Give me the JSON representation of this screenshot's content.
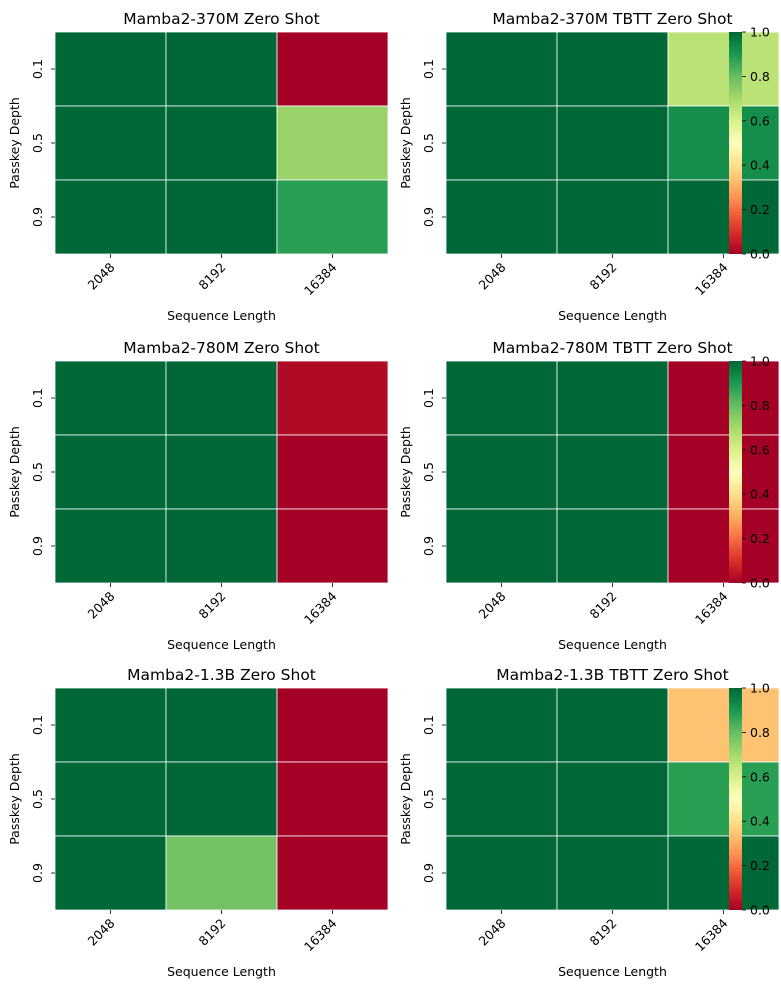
{
  "chart_data": [
    {
      "type": "heatmap",
      "title": "Mamba2-370M Zero Shot",
      "xlabel": "Sequence Length",
      "ylabel": "Passkey Depth",
      "x": [
        "2048",
        "8192",
        "16384"
      ],
      "y": [
        "0.1",
        "0.5",
        "0.9"
      ],
      "values": [
        [
          1.0,
          1.0,
          0.0
        ],
        [
          1.0,
          1.0,
          0.72
        ],
        [
          1.0,
          1.0,
          0.88
        ]
      ],
      "colorbar": null
    },
    {
      "type": "heatmap",
      "title": "Mamba2-370M TBTT Zero Shot",
      "xlabel": "Sequence Length",
      "ylabel": "Passkey Depth",
      "x": [
        "2048",
        "8192",
        "16384"
      ],
      "y": [
        "0.1",
        "0.5",
        "0.9"
      ],
      "values": [
        [
          1.0,
          1.0,
          0.66
        ],
        [
          1.0,
          1.0,
          0.92
        ],
        [
          1.0,
          1.0,
          1.0
        ]
      ],
      "colorbar": {
        "min": 0.0,
        "max": 1.0,
        "ticks": [
          "0.0",
          "0.2",
          "0.4",
          "0.6",
          "0.8",
          "1.0"
        ]
      }
    },
    {
      "type": "heatmap",
      "title": "Mamba2-780M Zero Shot",
      "xlabel": "Sequence Length",
      "ylabel": "Passkey Depth",
      "x": [
        "2048",
        "8192",
        "16384"
      ],
      "y": [
        "0.1",
        "0.5",
        "0.9"
      ],
      "values": [
        [
          1.0,
          1.0,
          0.02
        ],
        [
          1.0,
          1.0,
          0.0
        ],
        [
          1.0,
          1.0,
          0.0
        ]
      ],
      "colorbar": null
    },
    {
      "type": "heatmap",
      "title": "Mamba2-780M TBTT Zero Shot",
      "xlabel": "Sequence Length",
      "ylabel": "Passkey Depth",
      "x": [
        "2048",
        "8192",
        "16384"
      ],
      "y": [
        "0.1",
        "0.5",
        "0.9"
      ],
      "values": [
        [
          1.0,
          1.0,
          0.0
        ],
        [
          1.0,
          1.0,
          0.0
        ],
        [
          1.0,
          1.0,
          0.0
        ]
      ],
      "colorbar": {
        "min": 0.0,
        "max": 1.0,
        "ticks": [
          "0.0",
          "0.2",
          "0.4",
          "0.6",
          "0.8",
          "1.0"
        ]
      }
    },
    {
      "type": "heatmap",
      "title": "Mamba2-1.3B Zero Shot",
      "xlabel": "Sequence Length",
      "ylabel": "Passkey Depth",
      "x": [
        "2048",
        "8192",
        "16384"
      ],
      "y": [
        "0.1",
        "0.5",
        "0.9"
      ],
      "values": [
        [
          1.0,
          1.0,
          0.0
        ],
        [
          1.0,
          1.0,
          0.0
        ],
        [
          1.0,
          0.78,
          0.0
        ]
      ],
      "colorbar": null
    },
    {
      "type": "heatmap",
      "title": "Mamba2-1.3B TBTT Zero Shot",
      "xlabel": "Sequence Length",
      "ylabel": "Passkey Depth",
      "x": [
        "2048",
        "8192",
        "16384"
      ],
      "y": [
        "0.1",
        "0.5",
        "0.9"
      ],
      "values": [
        [
          1.0,
          1.0,
          0.34
        ],
        [
          1.0,
          1.0,
          0.88
        ],
        [
          1.0,
          1.0,
          1.0
        ]
      ],
      "colorbar": {
        "min": 0.0,
        "max": 1.0,
        "ticks": [
          "0.0",
          "0.2",
          "0.4",
          "0.6",
          "0.8",
          "1.0"
        ]
      }
    }
  ],
  "colormap": [
    "#a50026",
    "#d73027",
    "#f46d43",
    "#fdae61",
    "#fee08b",
    "#ffffbf",
    "#d9ef8b",
    "#a6d96a",
    "#66bd63",
    "#1a9850",
    "#006837"
  ],
  "grid_color": "#ffffff"
}
